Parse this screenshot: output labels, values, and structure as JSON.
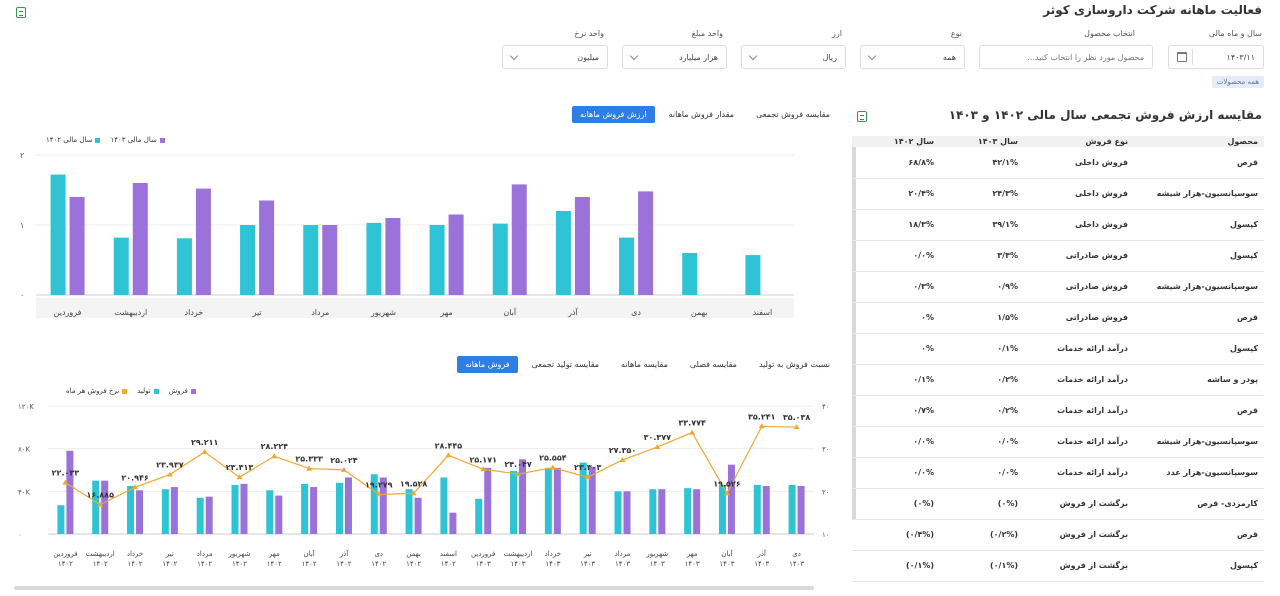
{
  "page": {
    "title": "فعالیت ماهانه شرکت داروسازی کوثر"
  },
  "filters": {
    "fiscal_label": "سال و ماه مالی",
    "fiscal_value": "۱۴۰۳/۱۱",
    "product_label": "انتخاب محصول",
    "product_placeholder": "محصول مورد نظر را انتخاب کنید...",
    "type_label": "نوع",
    "type_value": "همه",
    "currency_label": "ارز",
    "currency_value": "ریال",
    "amount_unit_label": "واحد مبلغ",
    "amount_unit_value": "هزار میلیارد",
    "rate_unit_label": "واحد نرخ",
    "rate_unit_value": "میلیون",
    "all_products_chip": "همه محصولات"
  },
  "top_chart": {
    "tabs": [
      "ارزش فروش ماهانه",
      "مقدار فروش ماهانه",
      "مقایسه فروش تجمعی"
    ],
    "active_tab": 0,
    "legend": [
      "سال مالی ۱۴۰۳",
      "سال مالی ۱۴۰۲"
    ],
    "y_ticks": [
      "۲",
      "۱",
      "۰"
    ]
  },
  "bottom_chart": {
    "tabs": [
      "فروش ماهانه",
      "مقایسه تولید تجمعی",
      "مقایسه ماهانه",
      "مقایسه فصلی",
      "نسبت فروش به تولید"
    ],
    "active_tab": 0,
    "legend": [
      "فروش",
      "تولید",
      "نرخ فروش هر ماه"
    ],
    "left_ticks": [
      "۱۲۰K",
      "۸۰K",
      "۴۰K",
      "۰"
    ],
    "right_ticks": [
      "۴۰",
      "۳۰",
      "۲۰",
      "۱۰"
    ]
  },
  "table": {
    "title": "مقایسه ارزش فروش تجمعی سال مالی ۱۴۰۲ و ۱۴۰۳",
    "headers": [
      "محصول",
      "نوع فروش",
      "سال ۱۴۰۳",
      "سال ۱۴۰۲"
    ],
    "rows": [
      [
        "قرص",
        "فروش داخلی",
        "۴۲/۱%",
        "۶۸/۸%"
      ],
      [
        "سوسپانسیون-هزار شیشه",
        "فروش داخلی",
        "۲۴/۳%",
        "۲۰/۴%"
      ],
      [
        "کپسول",
        "فروش داخلی",
        "۳۹/۱%",
        "۱۸/۳%"
      ],
      [
        "کپسول",
        "فروش صادراتی",
        "۳/۴%",
        "۰/۰%"
      ],
      [
        "سوسپانسیون-هزار شیشه",
        "فروش صادراتی",
        "۰/۹%",
        "۰/۳%"
      ],
      [
        "قرص",
        "فروش صادراتی",
        "۱/۵%",
        "۰%"
      ],
      [
        "کپسول",
        "درآمد ارائه خدمات",
        "۰/۱%",
        "۰%"
      ],
      [
        "پودر و ساشه",
        "درآمد ارائه خدمات",
        "۰/۲%",
        "۰/۱%"
      ],
      [
        "قرص",
        "درآمد ارائه خدمات",
        "۰/۲%",
        "۰/۷%"
      ],
      [
        "سوسپانسیون-هزار شیشه",
        "درآمد ارائه خدمات",
        "۰/۰%",
        "۰/۰%"
      ],
      [
        "سوسپانسیون-هزار عدد",
        "درآمد ارائه خدمات",
        "۰/۰%",
        "۰/۰%"
      ],
      [
        "کارمزدی- قرص",
        "برگشت از فروش",
        "(۰%)",
        "(۰%)"
      ],
      [
        "قرص",
        "برگشت از فروش",
        "(۰/۲%)",
        "(۰/۴%)"
      ],
      [
        "کپسول",
        "برگشت از فروش",
        "(۰/۱%)",
        "(۰/۱%)"
      ]
    ]
  },
  "chart_data": [
    {
      "type": "bar",
      "categories": [
        "فروردین",
        "اردیبهشت",
        "خرداد",
        "تیر",
        "مرداد",
        "شهریور",
        "مهر",
        "آبان",
        "آذر",
        "دی",
        "بهمن",
        "اسفند"
      ],
      "series": [
        {
          "name": "سال مالی ۱۴۰۲",
          "color": "#2ec4d6",
          "values": [
            1.72,
            0.82,
            0.81,
            1.0,
            1.0,
            1.03,
            1.0,
            1.02,
            1.2,
            0.82,
            0.6,
            0.57
          ]
        },
        {
          "name": "سال مالی ۱۴۰۳",
          "color": "#9b72d9",
          "values": [
            1.4,
            1.6,
            1.52,
            1.35,
            1.0,
            1.1,
            1.15,
            1.58,
            1.4,
            1.48,
            null,
            null
          ]
        }
      ],
      "ylim": [
        0,
        2
      ]
    },
    {
      "type": "bar",
      "categories": [
        "فروردین ۱۴۰۲",
        "اردیبهشت ۱۴۰۲",
        "خرداد ۱۴۰۲",
        "تیر ۱۴۰۲",
        "مرداد ۱۴۰۲",
        "شهریور ۱۴۰۲",
        "مهر ۱۴۰۲",
        "آبان ۱۴۰۲",
        "آذر ۱۴۰۲",
        "دی ۱۴۰۲",
        "بهمن ۱۴۰۲",
        "اسفند ۱۴۰۲",
        "فروردین ۱۴۰۳",
        "اردیبهشت ۱۴۰۳",
        "خرداد ۱۴۰۳",
        "تیر ۱۴۰۳",
        "مرداد ۱۴۰۳",
        "شهریور ۱۴۰۳",
        "مهر ۱۴۰۳",
        "آبان ۱۴۰۳",
        "آذر ۱۴۰۳",
        "دی ۱۴۰۳"
      ],
      "series": [
        {
          "name": "فروش",
          "color": "#2ec4d6",
          "values": [
            27000,
            50000,
            45000,
            42000,
            34000,
            46000,
            41000,
            47000,
            48000,
            56000,
            42000,
            53000,
            33000,
            59000,
            62000,
            67000,
            40000,
            42000,
            43000,
            46000,
            46000,
            46000
          ]
        },
        {
          "name": "تولید",
          "color": "#9b72d9",
          "values": [
            78000,
            50000,
            41000,
            44000,
            35000,
            47000,
            36000,
            44000,
            53000,
            53000,
            34000,
            20000,
            62000,
            70000,
            62000,
            63000,
            40000,
            42000,
            42000,
            65000,
            45000,
            45000
          ]
        },
        {
          "name": "نرخ فروش هر ماه",
          "color": "#f0a830",
          "axis": "right",
          "values": [
            22.033,
            16.885,
            20.946,
            23.937,
            29.211,
            23.313,
            28.224,
            25.333,
            25.024,
            19.279,
            19.528,
            28.445,
            25.171,
            24.047,
            25.554,
            23.303,
            27.35,
            30.377,
            33.774,
            19.526,
            35.241,
            35.038
          ],
          "labels": [
            "۲۲.۰۳۳",
            "۱۶.۸۸۵",
            "۲۰.۹۴۶",
            "۲۳.۹۳۷",
            "۲۹.۲۱۱",
            "۲۳.۳۱۳",
            "۲۸.۲۲۴",
            "۲۵.۳۳۳",
            "۲۵.۰۲۴",
            "۱۹.۲۷۹",
            "۱۹.۵۲۸",
            "۲۸.۴۴۵",
            "۲۵.۱۷۱",
            "۲۴.۰۴۷",
            "۲۵.۵۵۴",
            "۲۳.۳۰۳",
            "۲۷.۳۵۰",
            "۳۰.۳۷۷",
            "۳۳.۷۷۴",
            "۱۹.۵۲۶",
            "۳۵.۲۴۱",
            "۳۵.۰۳۸"
          ]
        }
      ],
      "ylim": [
        0,
        120000
      ],
      "y2lim": [
        10,
        40
      ]
    }
  ]
}
